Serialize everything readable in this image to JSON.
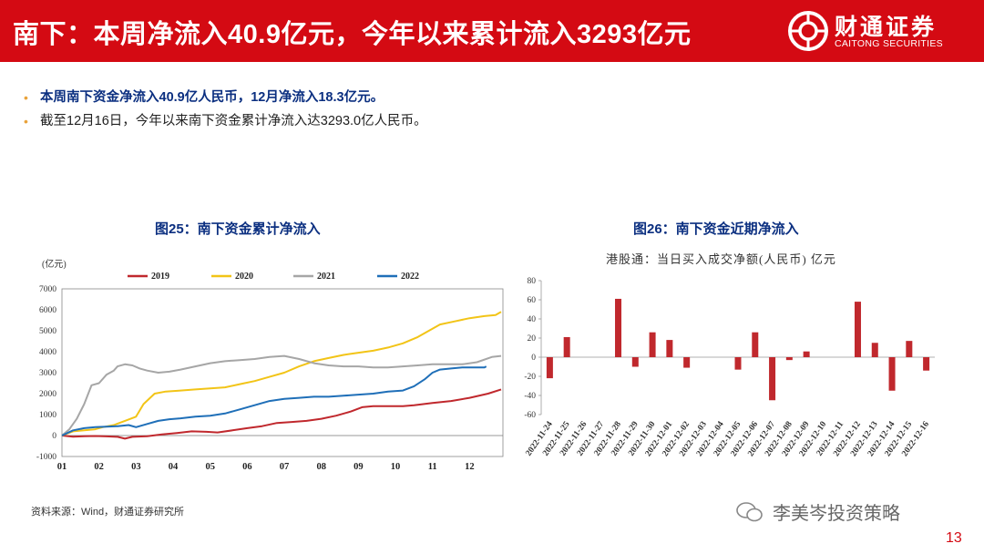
{
  "header": {
    "title": "南下：本周净流入40.9亿元，今年以来累计流入3293亿元",
    "logo_cn": "财通证券",
    "logo_en": "CAITONG SECURITIES",
    "colors": {
      "brand_red": "#d40a13"
    }
  },
  "bullets": [
    "本周南下资金净流入40.9亿人民币，12月净流入18.3亿元。",
    "截至12月16日，今年以来南下资金累计净流入达3293.0亿人民币。"
  ],
  "footer": {
    "source": "资料来源：Wind，财通证券研究所",
    "watermark": "李美岑投资策略",
    "page_number": "13"
  },
  "chart_data": [
    {
      "type": "line",
      "title": "图25：南下资金累计净流入",
      "ylabel": "(亿元)",
      "ylim": [
        -1000,
        7000
      ],
      "yticks": [
        -1000,
        0,
        1000,
        2000,
        3000,
        4000,
        5000,
        6000,
        7000
      ],
      "xlim": [
        1,
        12.9
      ],
      "xticks": [
        "01",
        "02",
        "03",
        "04",
        "05",
        "06",
        "07",
        "08",
        "09",
        "10",
        "11",
        "12"
      ],
      "legend_position": "top",
      "series": [
        {
          "name": "2019",
          "color": "#c0282d",
          "x": [
            1,
            1.3,
            1.6,
            1.9,
            2.2,
            2.5,
            2.7,
            2.9,
            3.3,
            3.7,
            4.1,
            4.5,
            4.9,
            5.2,
            5.6,
            6.0,
            6.4,
            6.8,
            7.2,
            7.6,
            8.0,
            8.4,
            8.8,
            9.1,
            9.4,
            9.8,
            10.2,
            10.5,
            11.0,
            11.5,
            12.0,
            12.5,
            12.85
          ],
          "values": [
            0,
            -50,
            -30,
            -20,
            -40,
            -60,
            -150,
            -60,
            -30,
            50,
            120,
            200,
            180,
            150,
            250,
            350,
            450,
            600,
            650,
            700,
            800,
            950,
            1150,
            1350,
            1400,
            1400,
            1400,
            1450,
            1550,
            1650,
            1800,
            2000,
            2200
          ]
        },
        {
          "name": "2020",
          "color": "#f2c417",
          "x": [
            1,
            1.3,
            1.6,
            1.9,
            2.1,
            2.4,
            2.7,
            3.0,
            3.2,
            3.5,
            3.8,
            4.2,
            4.6,
            5.0,
            5.4,
            5.8,
            6.2,
            6.6,
            7.0,
            7.4,
            7.8,
            8.2,
            8.6,
            9.0,
            9.4,
            9.8,
            10.2,
            10.6,
            10.9,
            11.2,
            11.6,
            12.0,
            12.4,
            12.7,
            12.85
          ],
          "values": [
            0,
            200,
            250,
            300,
            400,
            500,
            700,
            900,
            1500,
            2000,
            2100,
            2150,
            2200,
            2250,
            2300,
            2450,
            2600,
            2800,
            3000,
            3300,
            3550,
            3700,
            3850,
            3950,
            4050,
            4200,
            4400,
            4700,
            5000,
            5300,
            5450,
            5600,
            5700,
            5750,
            5900
          ]
        },
        {
          "name": "2021",
          "color": "#a6a6a6",
          "x": [
            1,
            1.2,
            1.4,
            1.6,
            1.8,
            2.0,
            2.2,
            2.4,
            2.5,
            2.7,
            2.9,
            3.1,
            3.3,
            3.6,
            3.9,
            4.2,
            4.6,
            5.0,
            5.4,
            5.8,
            6.2,
            6.6,
            7.0,
            7.4,
            7.8,
            8.2,
            8.6,
            9.0,
            9.4,
            9.8,
            10.2,
            10.6,
            11.0,
            11.4,
            11.8,
            12.2,
            12.6,
            12.85
          ],
          "values": [
            0,
            300,
            800,
            1500,
            2400,
            2500,
            2900,
            3100,
            3300,
            3400,
            3350,
            3200,
            3100,
            3000,
            3050,
            3150,
            3300,
            3450,
            3550,
            3600,
            3650,
            3750,
            3800,
            3650,
            3450,
            3350,
            3300,
            3300,
            3250,
            3250,
            3300,
            3350,
            3400,
            3400,
            3400,
            3500,
            3750,
            3800
          ]
        },
        {
          "name": "2022",
          "color": "#1f6fb8",
          "x": [
            1,
            1.3,
            1.6,
            1.9,
            2.2,
            2.5,
            2.8,
            3.0,
            3.3,
            3.6,
            3.9,
            4.2,
            4.6,
            5.0,
            5.4,
            5.8,
            6.2,
            6.6,
            7.0,
            7.4,
            7.8,
            8.2,
            8.6,
            9.0,
            9.4,
            9.8,
            10.2,
            10.5,
            10.8,
            11.0,
            11.2,
            11.5,
            11.8,
            12.1,
            12.4,
            12.45
          ],
          "values": [
            0,
            250,
            350,
            400,
            420,
            450,
            500,
            400,
            550,
            700,
            780,
            820,
            900,
            950,
            1050,
            1250,
            1450,
            1650,
            1750,
            1800,
            1850,
            1850,
            1900,
            1950,
            2000,
            2100,
            2150,
            2350,
            2700,
            3000,
            3150,
            3200,
            3250,
            3250,
            3250,
            3300
          ]
        }
      ]
    },
    {
      "type": "bar",
      "title": "图26：南下资金近期净流入",
      "subtitle": "港股通：当日买入成交净额(人民币) 亿元",
      "ylim": [
        -60,
        80
      ],
      "yticks": [
        -60,
        -40,
        -20,
        0,
        20,
        40,
        60,
        80
      ],
      "bar_color": "#c0282d",
      "categories": [
        "2022-11-24",
        "2022-11-25",
        "2022-11-26",
        "2022-11-27",
        "2022-11-28",
        "2022-11-29",
        "2022-11-30",
        "2022-12-01",
        "2022-12-02",
        "2022-12-03",
        "2022-12-04",
        "2022-12-05",
        "2022-12-06",
        "2022-12-07",
        "2022-12-08",
        "2022-12-09",
        "2022-12-10",
        "2022-12-11",
        "2022-12-12",
        "2022-12-13",
        "2022-12-14",
        "2022-12-15",
        "2022-12-16"
      ],
      "values": [
        -22,
        21,
        0,
        0,
        61,
        -10,
        26,
        18,
        -11,
        0,
        0,
        -13,
        26,
        -45,
        -3,
        6,
        0,
        0,
        58,
        15,
        -35,
        17,
        -14
      ]
    }
  ]
}
